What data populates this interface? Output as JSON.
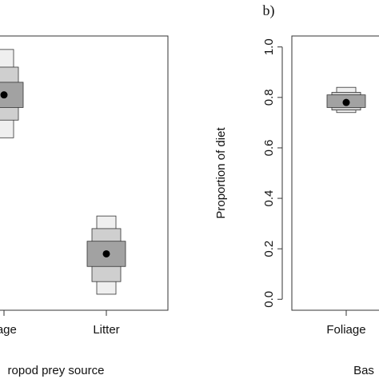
{
  "chart_data": [
    {
      "type": "box",
      "panel_label": "",
      "categories": [
        "liage",
        "Litter"
      ],
      "xlabel": "ropod prey source",
      "ylabel": "",
      "ylim": [
        0,
        1.0
      ],
      "series": [
        {
          "category": "liage",
          "mode": 0.81,
          "q25": [
            0.76,
            0.86
          ],
          "q50": [
            0.71,
            0.92
          ],
          "q95": [
            0.64,
            0.99
          ]
        },
        {
          "category": "Litter",
          "mode": 0.18,
          "q25": [
            0.13,
            0.23
          ],
          "q50": [
            0.07,
            0.28
          ],
          "q95": [
            0.02,
            0.33
          ]
        }
      ]
    },
    {
      "type": "box",
      "panel_label": "b)",
      "categories": [
        "Foliage"
      ],
      "xlabel": "Bas",
      "ylabel": "Proportion of diet",
      "ylim": [
        0,
        1.0
      ],
      "yticks": [
        "0.0",
        "0.2",
        "0.4",
        "0.6",
        "0.8",
        "1.0"
      ],
      "series": [
        {
          "category": "Foliage",
          "mode": 0.78,
          "q25": [
            0.76,
            0.81
          ],
          "q50": [
            0.75,
            0.82
          ],
          "q95": [
            0.74,
            0.84
          ]
        }
      ]
    }
  ],
  "colors": {
    "q95": "#efefef",
    "q50": "#cfcfcf",
    "q25": "#a2a2a2",
    "mode": "#000000",
    "frame": "#333333"
  }
}
